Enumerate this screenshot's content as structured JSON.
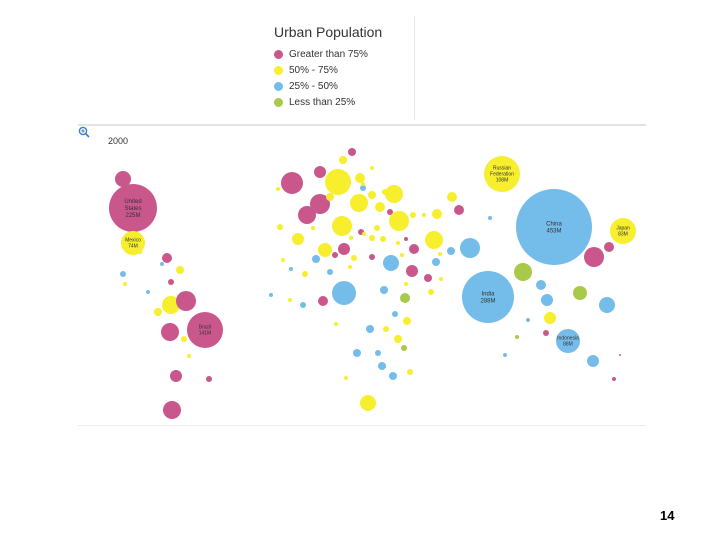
{
  "chart_data": {
    "type": "scatter",
    "subtype": "bubble-map",
    "title": "Urban Population",
    "year": "2000",
    "legend": [
      {
        "label": "Greater than 75%",
        "color": "#c9578c"
      },
      {
        "label": "50% - 75%",
        "color": "#f7ee2e"
      },
      {
        "label": "25% - 50%",
        "color": "#74bdea"
      },
      {
        "label": "Less than 25%",
        "color": "#a8c94a"
      }
    ],
    "labeled_bubbles": [
      {
        "name": "United States",
        "value": "225M",
        "category": "Greater than 75%"
      },
      {
        "name": "Mexico",
        "value": "74M",
        "category": "50% - 75%"
      },
      {
        "name": "Brazil",
        "value": "141M",
        "category": "Greater than 75%"
      },
      {
        "name": "Russian Federation",
        "value": "108M",
        "category": "50% - 75%"
      },
      {
        "name": "China",
        "value": "453M",
        "category": "25% - 50%"
      },
      {
        "name": "Japan",
        "value": "83M",
        "category": "50% - 75%"
      },
      {
        "name": "India",
        "value": "288M",
        "category": "25% - 50%"
      },
      {
        "name": "Indonesia",
        "value": "88M",
        "category": "25% - 50%"
      }
    ]
  },
  "page": {
    "number": "14"
  },
  "colors": {
    "pink": "#c9578c",
    "yellow": "#f7ee2e",
    "blue": "#74bdea",
    "green": "#a8c94a"
  }
}
